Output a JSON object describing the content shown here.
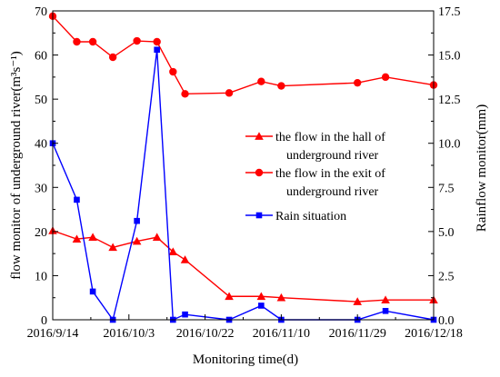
{
  "chart_data": {
    "type": "line",
    "xlabel": "Monitoring time(d)",
    "ylabel_left": "flow monitor of underground river(m³s⁻¹)",
    "ylabel_right": "Rainflow monitor(mm)",
    "xlim": [
      "2016-09-14",
      "2016-12-18"
    ],
    "ylim_left": [
      0,
      70
    ],
    "ylim_right": [
      0,
      17.5
    ],
    "x_ticks": [
      "2016/9/14",
      "2016/10/3",
      "2016/10/22",
      "2016/11/10",
      "2016/11/29",
      "2016/12/18"
    ],
    "y_ticks_left": [
      "0",
      "10",
      "20",
      "30",
      "40",
      "50",
      "60",
      "70"
    ],
    "y_ticks_right": [
      "0.0",
      "2.5",
      "5.0",
      "7.5",
      "10.0",
      "12.5",
      "15.0",
      "17.5"
    ],
    "grid": false,
    "legend_position": "center-right",
    "series": [
      {
        "name": "the flow in the hall of underground river",
        "legend_lines": [
          "the flow in the hall of",
          "underground river"
        ],
        "axis": "left",
        "marker": "triangle",
        "color": "#ff0000",
        "points": [
          [
            "2016-09-14",
            20.2
          ],
          [
            "2016-09-20",
            18.3
          ],
          [
            "2016-09-24",
            18.7
          ],
          [
            "2016-09-29",
            16.4
          ],
          [
            "2016-10-05",
            17.8
          ],
          [
            "2016-10-10",
            18.7
          ],
          [
            "2016-10-14",
            15.4
          ],
          [
            "2016-10-17",
            13.6
          ],
          [
            "2016-10-28",
            5.3
          ],
          [
            "2016-11-05",
            5.3
          ],
          [
            "2016-11-10",
            5.0
          ],
          [
            "2016-11-29",
            4.1
          ],
          [
            "2016-12-06",
            4.5
          ],
          [
            "2016-12-18",
            4.5
          ]
        ]
      },
      {
        "name": "the flow in the exit of underground river",
        "legend_lines": [
          "the flow in the exit of",
          "underground river"
        ],
        "axis": "left",
        "marker": "circle",
        "color": "#ff0000",
        "points": [
          [
            "2016-09-14",
            68.8
          ],
          [
            "2016-09-20",
            63.0
          ],
          [
            "2016-09-24",
            63.0
          ],
          [
            "2016-09-29",
            59.5
          ],
          [
            "2016-10-05",
            63.2
          ],
          [
            "2016-10-10",
            63.0
          ],
          [
            "2016-10-14",
            56.2
          ],
          [
            "2016-10-17",
            51.2
          ],
          [
            "2016-10-28",
            51.4
          ],
          [
            "2016-11-05",
            54.0
          ],
          [
            "2016-11-10",
            53.0
          ],
          [
            "2016-11-29",
            53.7
          ],
          [
            "2016-12-06",
            55.0
          ],
          [
            "2016-12-18",
            53.2
          ]
        ]
      },
      {
        "name": "Rain situation",
        "legend_lines": [
          "Rain situation"
        ],
        "axis": "right",
        "marker": "square",
        "color": "#0000ff",
        "points": [
          [
            "2016-09-14",
            10.0
          ],
          [
            "2016-09-20",
            6.8
          ],
          [
            "2016-09-24",
            1.6
          ],
          [
            "2016-09-29",
            0.0
          ],
          [
            "2016-10-05",
            5.6
          ],
          [
            "2016-10-10",
            15.3
          ],
          [
            "2016-10-14",
            0.0
          ],
          [
            "2016-10-17",
            0.3
          ],
          [
            "2016-10-28",
            0.0
          ],
          [
            "2016-11-05",
            0.8
          ],
          [
            "2016-11-10",
            0.0
          ],
          [
            "2016-11-29",
            0.0
          ],
          [
            "2016-12-06",
            0.5
          ],
          [
            "2016-12-18",
            0.0
          ]
        ]
      }
    ]
  }
}
